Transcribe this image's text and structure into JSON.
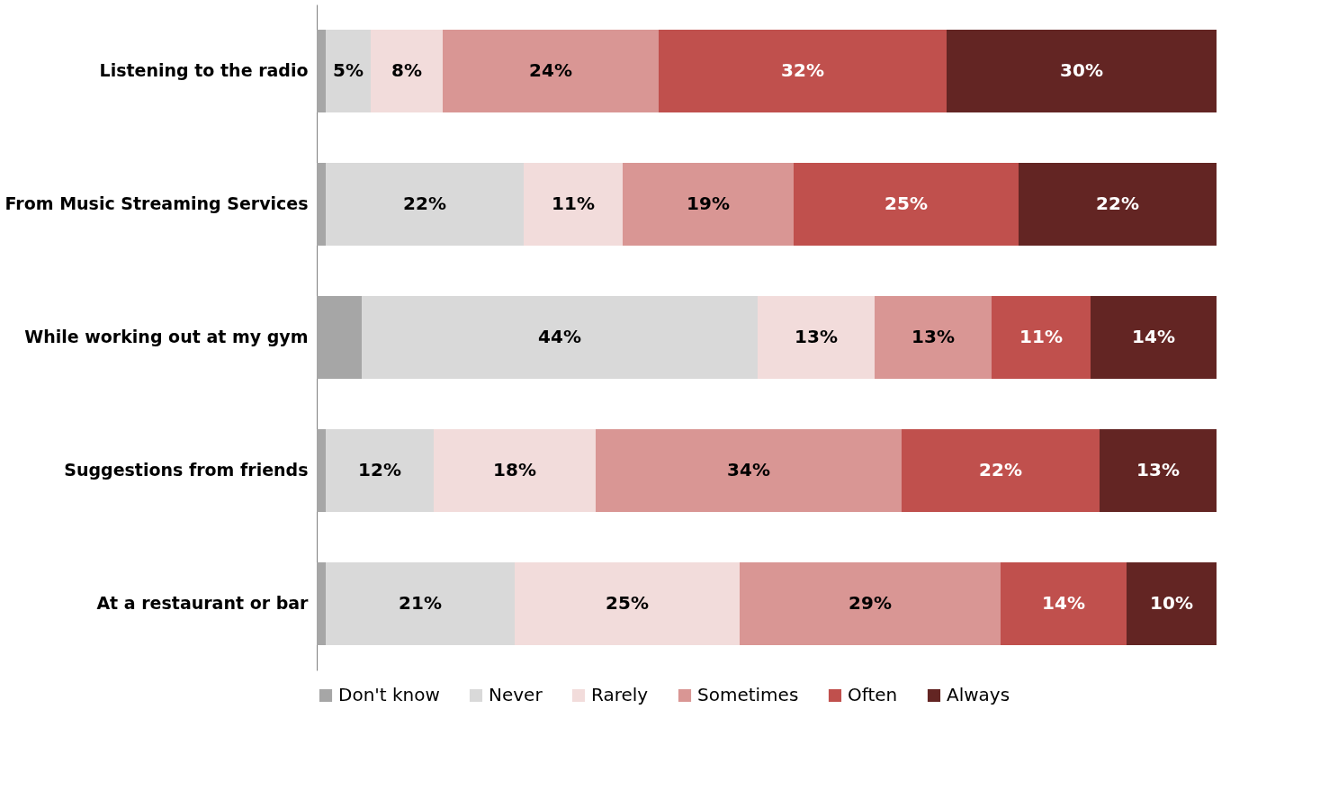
{
  "chart_data": {
    "type": "bar",
    "orientation": "horizontal",
    "stacked": true,
    "categories": [
      "Listening to the radio",
      "From Music Streaming Services",
      "While working out at my gym",
      "Suggestions from friends",
      "At a restaurant or bar"
    ],
    "series": [
      {
        "name": "Don't know",
        "color": "#a6a6a6",
        "values": [
          1,
          1,
          5,
          1,
          1
        ],
        "value_labels": [
          null,
          null,
          null,
          null,
          null
        ]
      },
      {
        "name": "Never",
        "color": "#d9d9d9",
        "values": [
          5,
          22,
          44,
          12,
          21
        ],
        "value_labels": [
          "5%",
          "22%",
          "44%",
          "12%",
          "21%"
        ]
      },
      {
        "name": "Rarely",
        "color": "#f2dcdb",
        "values": [
          8,
          11,
          13,
          18,
          25
        ],
        "value_labels": [
          "8%",
          "11%",
          "13%",
          "18%",
          "25%"
        ]
      },
      {
        "name": "Sometimes",
        "color": "#d99694",
        "values": [
          24,
          19,
          13,
          34,
          29
        ],
        "value_labels": [
          "24%",
          "19%",
          "13%",
          "34%",
          "29%"
        ]
      },
      {
        "name": "Often",
        "color": "#c0504d",
        "values": [
          32,
          25,
          11,
          22,
          14
        ],
        "value_labels": [
          "32%",
          "25%",
          "11%",
          "22%",
          "14%"
        ]
      },
      {
        "name": "Always",
        "color": "#632523",
        "values": [
          30,
          22,
          14,
          13,
          10
        ],
        "value_labels": [
          "30%",
          "22%",
          "14%",
          "13%",
          "10%"
        ]
      }
    ],
    "xlim": [
      0,
      100
    ],
    "tick_labels": "y",
    "legend": "bottom"
  }
}
